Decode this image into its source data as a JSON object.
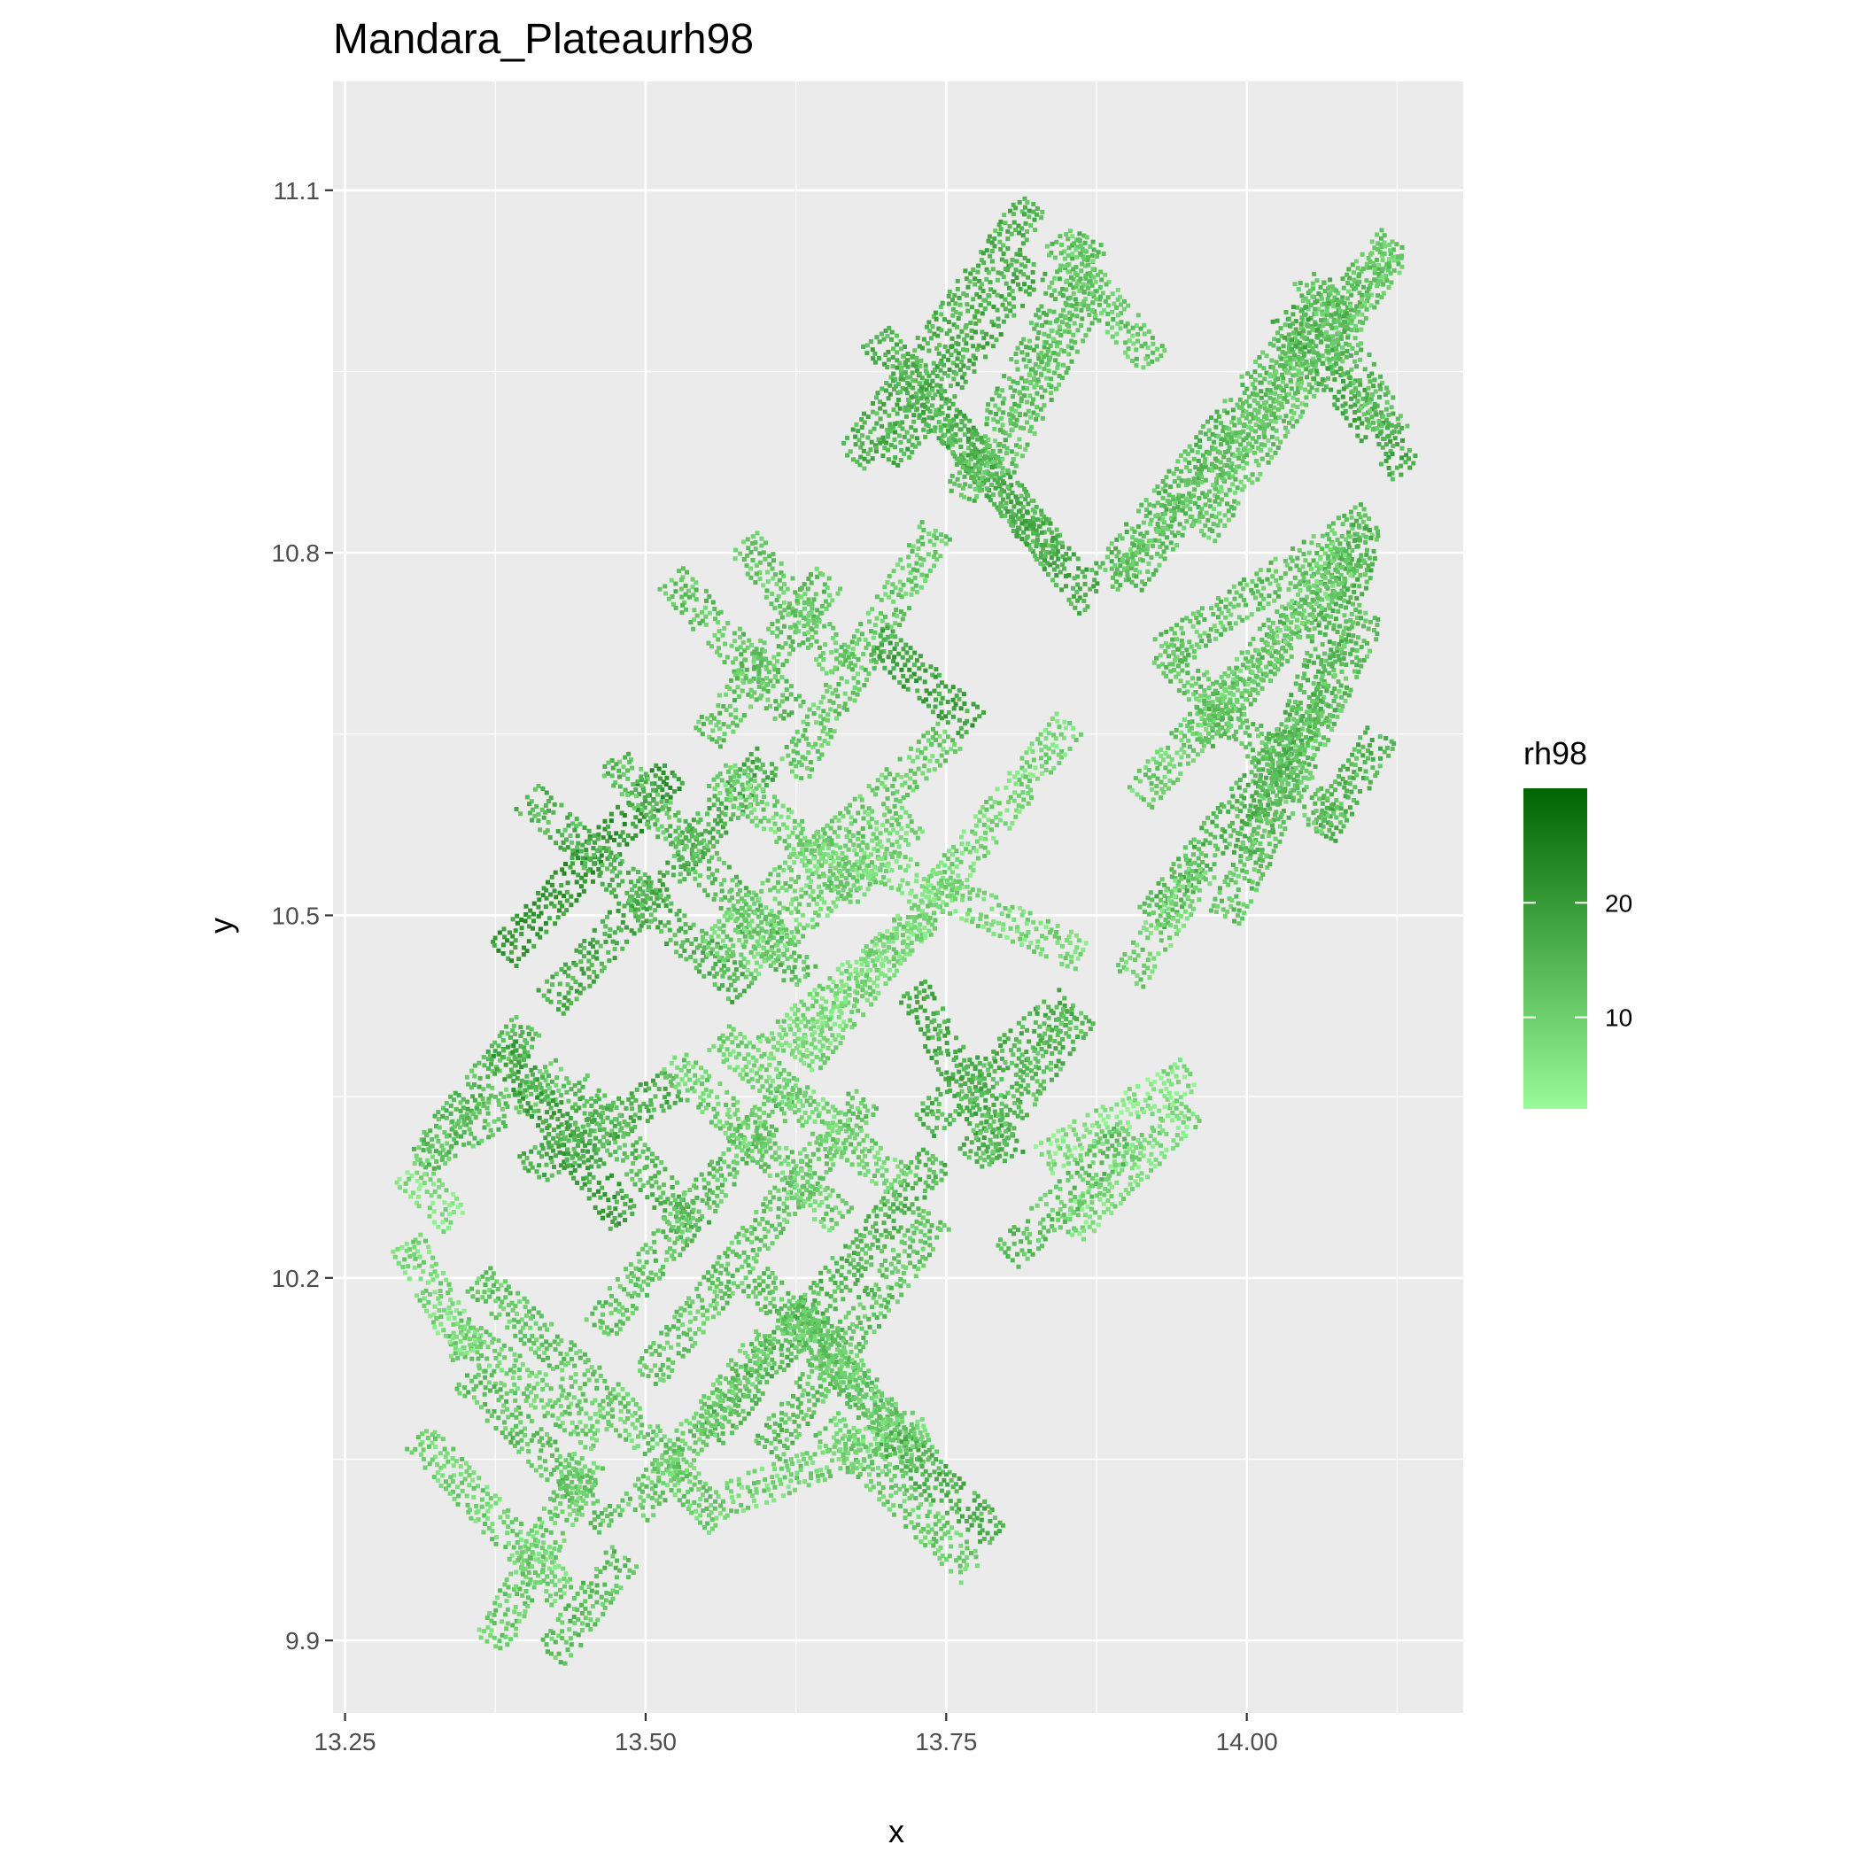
{
  "chart_data": {
    "type": "heatmap",
    "title": "Mandara_Plateaurh98",
    "xlabel": "x",
    "ylabel": "y",
    "xlim": [
      13.24,
      14.18
    ],
    "ylim": [
      9.84,
      11.19
    ],
    "x_ticks": [
      13.25,
      13.5,
      13.75,
      14.0
    ],
    "x_tick_labels": [
      "13.25",
      "13.50",
      "13.75",
      "14.00"
    ],
    "y_ticks": [
      9.9,
      10.2,
      10.5,
      10.8,
      11.1
    ],
    "y_tick_labels": [
      "9.9",
      "10.2",
      "10.5",
      "10.8",
      "11.1"
    ],
    "grid": true,
    "legend": {
      "title": "rh98",
      "placement": "right",
      "breaks": [
        10,
        20
      ],
      "break_labels": [
        "10",
        "20"
      ],
      "range": [
        2,
        30
      ],
      "color_low": "#98fb98",
      "color_high": "#006400"
    },
    "panel_background": "#ebebeb",
    "grid_color": "#ffffff",
    "tracks": [
      {
        "x1": 13.38,
        "y1": 10.47,
        "x2": 13.52,
        "y2": 10.62,
        "value": 20
      },
      {
        "x1": 13.42,
        "y1": 10.43,
        "x2": 13.6,
        "y2": 10.63,
        "value": 16
      },
      {
        "x1": 13.4,
        "y1": 10.6,
        "x2": 13.58,
        "y2": 10.44,
        "value": 15
      },
      {
        "x1": 13.47,
        "y1": 10.63,
        "x2": 13.63,
        "y2": 10.45,
        "value": 13
      },
      {
        "x1": 13.52,
        "y1": 10.78,
        "x2": 13.62,
        "y2": 10.67,
        "value": 12
      },
      {
        "x1": 13.55,
        "y1": 10.65,
        "x2": 13.65,
        "y2": 10.78,
        "value": 12
      },
      {
        "x1": 13.62,
        "y1": 10.62,
        "x2": 13.74,
        "y2": 10.82,
        "value": 11
      },
      {
        "x1": 13.58,
        "y1": 10.81,
        "x2": 13.66,
        "y2": 10.71,
        "value": 11
      },
      {
        "x1": 13.67,
        "y1": 10.88,
        "x2": 13.82,
        "y2": 11.09,
        "value": 15
      },
      {
        "x1": 13.7,
        "y1": 10.88,
        "x2": 13.82,
        "y2": 11.04,
        "value": 16
      },
      {
        "x1": 13.69,
        "y1": 10.98,
        "x2": 13.84,
        "y2": 10.8,
        "value": 15
      },
      {
        "x1": 13.75,
        "y1": 10.91,
        "x2": 13.87,
        "y2": 10.76,
        "value": 16
      },
      {
        "x1": 13.76,
        "y1": 10.85,
        "x2": 13.87,
        "y2": 11.06,
        "value": 13
      },
      {
        "x1": 13.79,
        "y1": 10.87,
        "x2": 13.87,
        "y2": 11.02,
        "value": 12
      },
      {
        "x1": 13.84,
        "y1": 11.06,
        "x2": 13.92,
        "y2": 10.96,
        "value": 11
      },
      {
        "x1": 13.88,
        "y1": 10.78,
        "x2": 14.07,
        "y2": 11.02,
        "value": 13
      },
      {
        "x1": 13.9,
        "y1": 10.78,
        "x2": 14.12,
        "y2": 11.06,
        "value": 12
      },
      {
        "x1": 13.96,
        "y1": 10.82,
        "x2": 14.12,
        "y2": 11.05,
        "value": 11
      },
      {
        "x1": 14.03,
        "y1": 11.0,
        "x2": 14.13,
        "y2": 10.87,
        "value": 16
      },
      {
        "x1": 14.05,
        "y1": 11.03,
        "x2": 14.12,
        "y2": 10.9,
        "value": 13
      },
      {
        "x1": 13.93,
        "y1": 10.72,
        "x2": 14.1,
        "y2": 10.83,
        "value": 12
      },
      {
        "x1": 13.96,
        "y1": 10.65,
        "x2": 14.09,
        "y2": 10.8,
        "value": 13
      },
      {
        "x1": 14.06,
        "y1": 10.57,
        "x2": 14.11,
        "y2": 10.65,
        "value": 15
      },
      {
        "x1": 14.0,
        "y1": 10.55,
        "x2": 14.1,
        "y2": 10.82,
        "value": 14
      },
      {
        "x1": 13.98,
        "y1": 10.5,
        "x2": 14.1,
        "y2": 10.75,
        "value": 12
      },
      {
        "x1": 13.91,
        "y1": 10.6,
        "x2": 14.08,
        "y2": 10.8,
        "value": 10
      },
      {
        "x1": 13.93,
        "y1": 10.72,
        "x2": 14.07,
        "y2": 10.58,
        "value": 12
      },
      {
        "x1": 13.92,
        "y1": 10.5,
        "x2": 14.06,
        "y2": 10.68,
        "value": 14
      },
      {
        "x1": 13.69,
        "y1": 10.73,
        "x2": 13.77,
        "y2": 10.66,
        "value": 18
      },
      {
        "x1": 13.55,
        "y1": 10.47,
        "x2": 13.75,
        "y2": 10.65,
        "value": 10
      },
      {
        "x1": 13.58,
        "y1": 10.46,
        "x2": 13.72,
        "y2": 10.58,
        "value": 9
      },
      {
        "x1": 13.6,
        "y1": 10.39,
        "x2": 13.73,
        "y2": 10.5,
        "value": 8
      },
      {
        "x1": 13.63,
        "y1": 10.38,
        "x2": 13.85,
        "y2": 10.66,
        "value": 8
      },
      {
        "x1": 13.68,
        "y1": 10.55,
        "x2": 13.86,
        "y2": 10.47,
        "value": 8
      },
      {
        "x1": 13.73,
        "y1": 10.33,
        "x2": 13.85,
        "y2": 10.43,
        "value": 15
      },
      {
        "x1": 13.72,
        "y1": 10.44,
        "x2": 13.8,
        "y2": 10.3,
        "value": 16
      },
      {
        "x1": 13.77,
        "y1": 10.3,
        "x2": 13.86,
        "y2": 10.42,
        "value": 14
      },
      {
        "x1": 13.83,
        "y1": 10.3,
        "x2": 13.95,
        "y2": 10.37,
        "value": 6
      },
      {
        "x1": 13.85,
        "y1": 10.24,
        "x2": 13.95,
        "y2": 10.34,
        "value": 7
      },
      {
        "x1": 13.8,
        "y1": 10.22,
        "x2": 13.9,
        "y2": 10.32,
        "value": 12
      },
      {
        "x1": 13.9,
        "y1": 10.45,
        "x2": 13.96,
        "y2": 10.54,
        "value": 9
      },
      {
        "x1": 13.31,
        "y1": 10.3,
        "x2": 13.43,
        "y2": 10.37,
        "value": 12
      },
      {
        "x1": 13.32,
        "y1": 10.31,
        "x2": 13.4,
        "y2": 10.41,
        "value": 14
      },
      {
        "x1": 13.38,
        "y1": 10.39,
        "x2": 13.48,
        "y2": 10.25,
        "value": 18
      },
      {
        "x1": 13.4,
        "y1": 10.29,
        "x2": 13.52,
        "y2": 10.36,
        "value": 16
      },
      {
        "x1": 13.44,
        "y1": 10.36,
        "x2": 13.54,
        "y2": 10.24,
        "value": 14
      },
      {
        "x1": 13.46,
        "y1": 10.16,
        "x2": 13.62,
        "y2": 10.36,
        "value": 12
      },
      {
        "x1": 13.5,
        "y1": 10.12,
        "x2": 13.68,
        "y2": 10.35,
        "value": 11
      },
      {
        "x1": 13.55,
        "y1": 10.07,
        "x2": 13.74,
        "y2": 10.3,
        "value": 14
      },
      {
        "x1": 13.6,
        "y1": 10.06,
        "x2": 13.74,
        "y2": 10.25,
        "value": 12
      },
      {
        "x1": 13.59,
        "y1": 10.2,
        "x2": 13.7,
        "y2": 10.08,
        "value": 12
      },
      {
        "x1": 13.62,
        "y1": 10.18,
        "x2": 13.73,
        "y2": 10.05,
        "value": 11
      },
      {
        "x1": 13.65,
        "y1": 10.08,
        "x2": 13.77,
        "y2": 9.96,
        "value": 10
      },
      {
        "x1": 13.7,
        "y1": 10.07,
        "x2": 13.79,
        "y2": 9.99,
        "value": 15
      },
      {
        "x1": 13.57,
        "y1": 10.02,
        "x2": 13.73,
        "y2": 10.08,
        "value": 9
      },
      {
        "x1": 13.47,
        "y1": 10.1,
        "x2": 13.56,
        "y2": 10.0,
        "value": 10
      },
      {
        "x1": 13.49,
        "y1": 10.01,
        "x2": 13.6,
        "y2": 10.15,
        "value": 11
      },
      {
        "x1": 13.35,
        "y1": 10.12,
        "x2": 13.47,
        "y2": 10.0,
        "value": 12
      },
      {
        "x1": 13.34,
        "y1": 10.16,
        "x2": 13.46,
        "y2": 10.07,
        "value": 10
      },
      {
        "x1": 13.36,
        "y1": 10.2,
        "x2": 13.47,
        "y2": 10.1,
        "value": 11
      },
      {
        "x1": 13.31,
        "y1": 10.07,
        "x2": 13.43,
        "y2": 9.94,
        "value": 9
      },
      {
        "x1": 13.37,
        "y1": 9.9,
        "x2": 13.45,
        "y2": 10.05,
        "value": 10
      },
      {
        "x1": 13.42,
        "y1": 9.89,
        "x2": 13.48,
        "y2": 9.97,
        "value": 12
      },
      {
        "x1": 13.3,
        "y1": 10.23,
        "x2": 13.35,
        "y2": 10.14,
        "value": 8
      },
      {
        "x1": 13.3,
        "y1": 10.29,
        "x2": 13.34,
        "y2": 10.25,
        "value": 7
      },
      {
        "x1": 13.52,
        "y1": 10.38,
        "x2": 13.66,
        "y2": 10.25,
        "value": 10
      },
      {
        "x1": 13.56,
        "y1": 10.4,
        "x2": 13.71,
        "y2": 10.28,
        "value": 9
      },
      {
        "x1": 13.56,
        "y1": 10.62,
        "x2": 13.68,
        "y2": 10.52,
        "value": 9
      }
    ]
  }
}
